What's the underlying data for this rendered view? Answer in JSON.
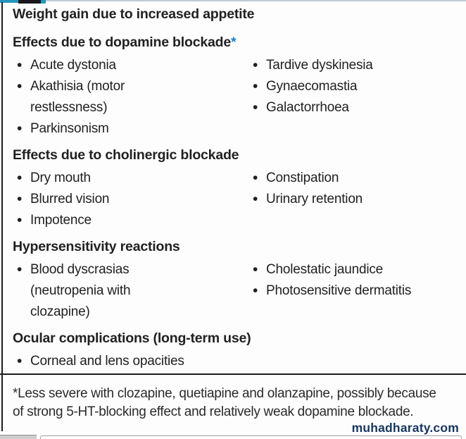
{
  "table": {
    "header": "Weight gain due to increased appetite",
    "sections": [
      {
        "heading": "Effects due to dopamine blockade",
        "asterisk": "*",
        "left": [
          "Acute dystonia",
          "Akathisia (motor restlessness)",
          "Parkinsonism"
        ],
        "right": [
          "Tardive dyskinesia",
          "Gynaecomastia",
          "Galactorrhoea"
        ]
      },
      {
        "heading": "Effects due to cholinergic blockade",
        "left": [
          "Dry mouth",
          "Blurred vision",
          "Impotence"
        ],
        "right": [
          "Constipation",
          "Urinary retention"
        ]
      },
      {
        "heading": "Hypersensitivity reactions",
        "left": [
          "Blood dyscrasias (neutropenia with clozapine)"
        ],
        "right": [
          "Cholestatic jaundice",
          "Photosensitive dermatitis"
        ]
      },
      {
        "heading": "Ocular complications (long-term use)",
        "left": [
          "Corneal and lens opacities"
        ],
        "right": []
      }
    ],
    "footnote": "*Less severe with clozapine, quetiapine and olanzapine, possibly because of strong 5-HT-blocking effect and relatively weak dopamine blockade."
  },
  "watermark": "muhadharaty.com",
  "colors": {
    "text": "#212123",
    "line": "#1c1c1c",
    "accent-blue": "#1b80c4",
    "teal": "#2596be",
    "watermark-blue": "#17365f"
  }
}
